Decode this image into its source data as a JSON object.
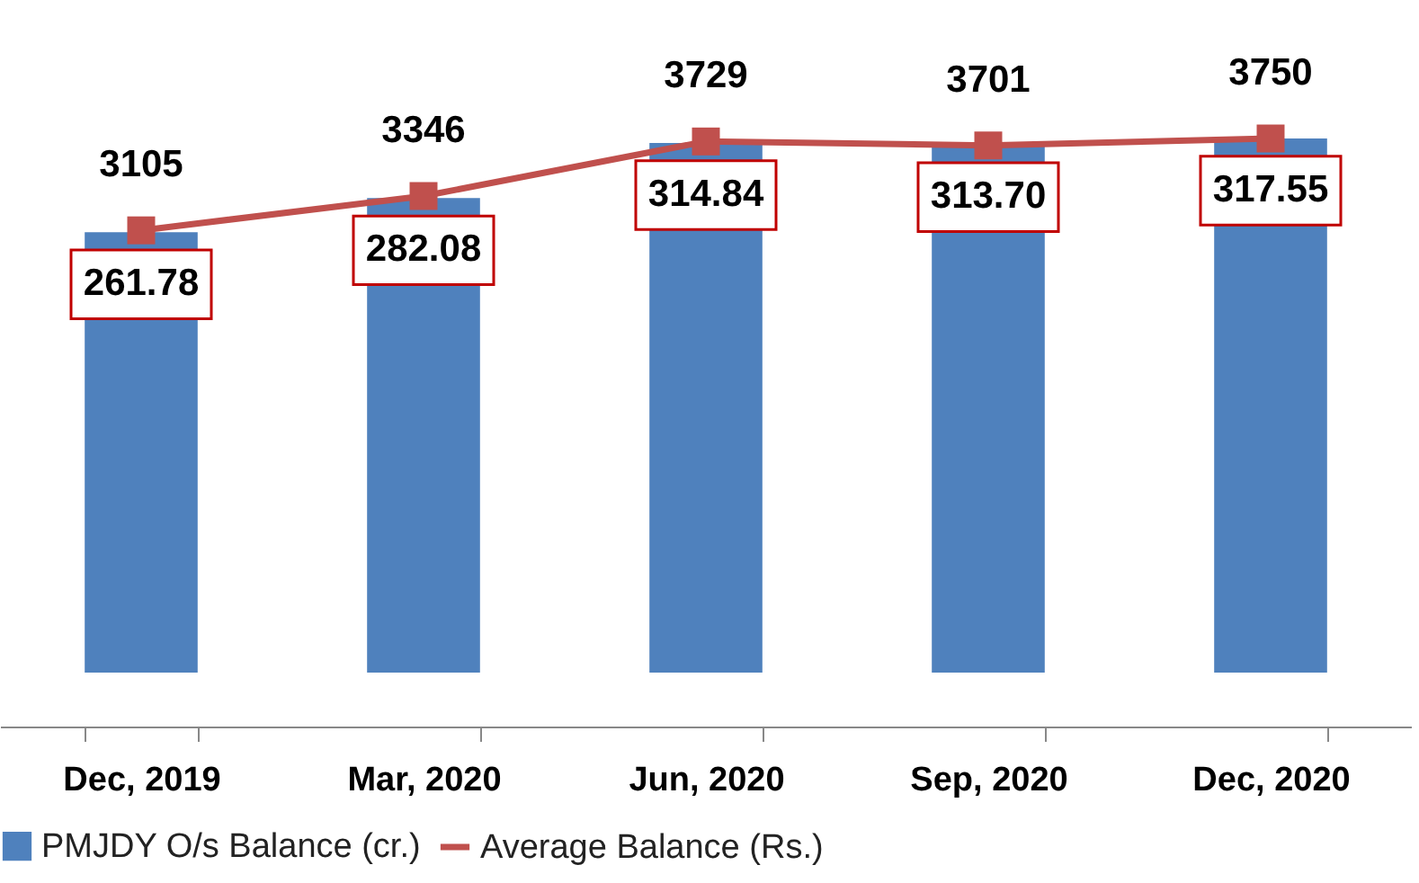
{
  "chart_data": {
    "type": "bar",
    "categories": [
      "Dec, 2019",
      "Mar, 2020",
      "Jun, 2020",
      "Sep, 2020",
      "Dec, 2020"
    ],
    "series": [
      {
        "name": "PMJDY O/s Balance (cr.)",
        "color": "#4f81bd",
        "values": [
          261.78,
          282.08,
          314.84,
          313.7,
          317.55
        ],
        "value_labels": [
          "261.78",
          "282.08",
          "314.84",
          "313.70",
          "317.55"
        ]
      },
      {
        "name": "Average Balance (Rs.)",
        "type": "line",
        "axis": "y2",
        "color": "#c0504d",
        "values": [
          3105,
          3346,
          3729,
          3701,
          3750
        ]
      }
    ],
    "data_labels": true,
    "legend": "bottom",
    "tick_labels": "x",
    "marker": "square",
    "grid": false
  }
}
